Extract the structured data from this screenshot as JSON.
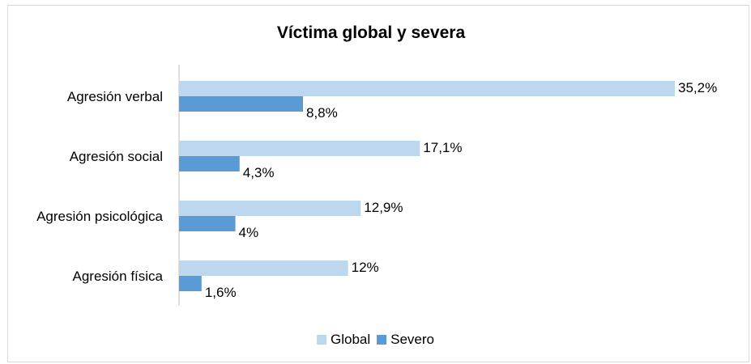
{
  "chart_data": {
    "type": "bar",
    "orientation": "horizontal",
    "title": "Víctima global y severa",
    "categories": [
      "Agresión verbal",
      "Agresión social",
      "Agresión psicológica",
      "Agresión física"
    ],
    "series": [
      {
        "name": "Global",
        "values": [
          35.2,
          17.1,
          12.9,
          12
        ],
        "labels": [
          "35,2%",
          "17,1%",
          "12,9%",
          "12%"
        ],
        "color": "#bdd7ee"
      },
      {
        "name": "Severo",
        "values": [
          8.8,
          4.3,
          4,
          1.6
        ],
        "labels": [
          "8,8%",
          "4,3%",
          "4%",
          "1,6%"
        ],
        "color": "#5b9bd5"
      }
    ],
    "xlim": [
      0,
      36
    ],
    "grid": false,
    "legend_position": "bottom"
  }
}
